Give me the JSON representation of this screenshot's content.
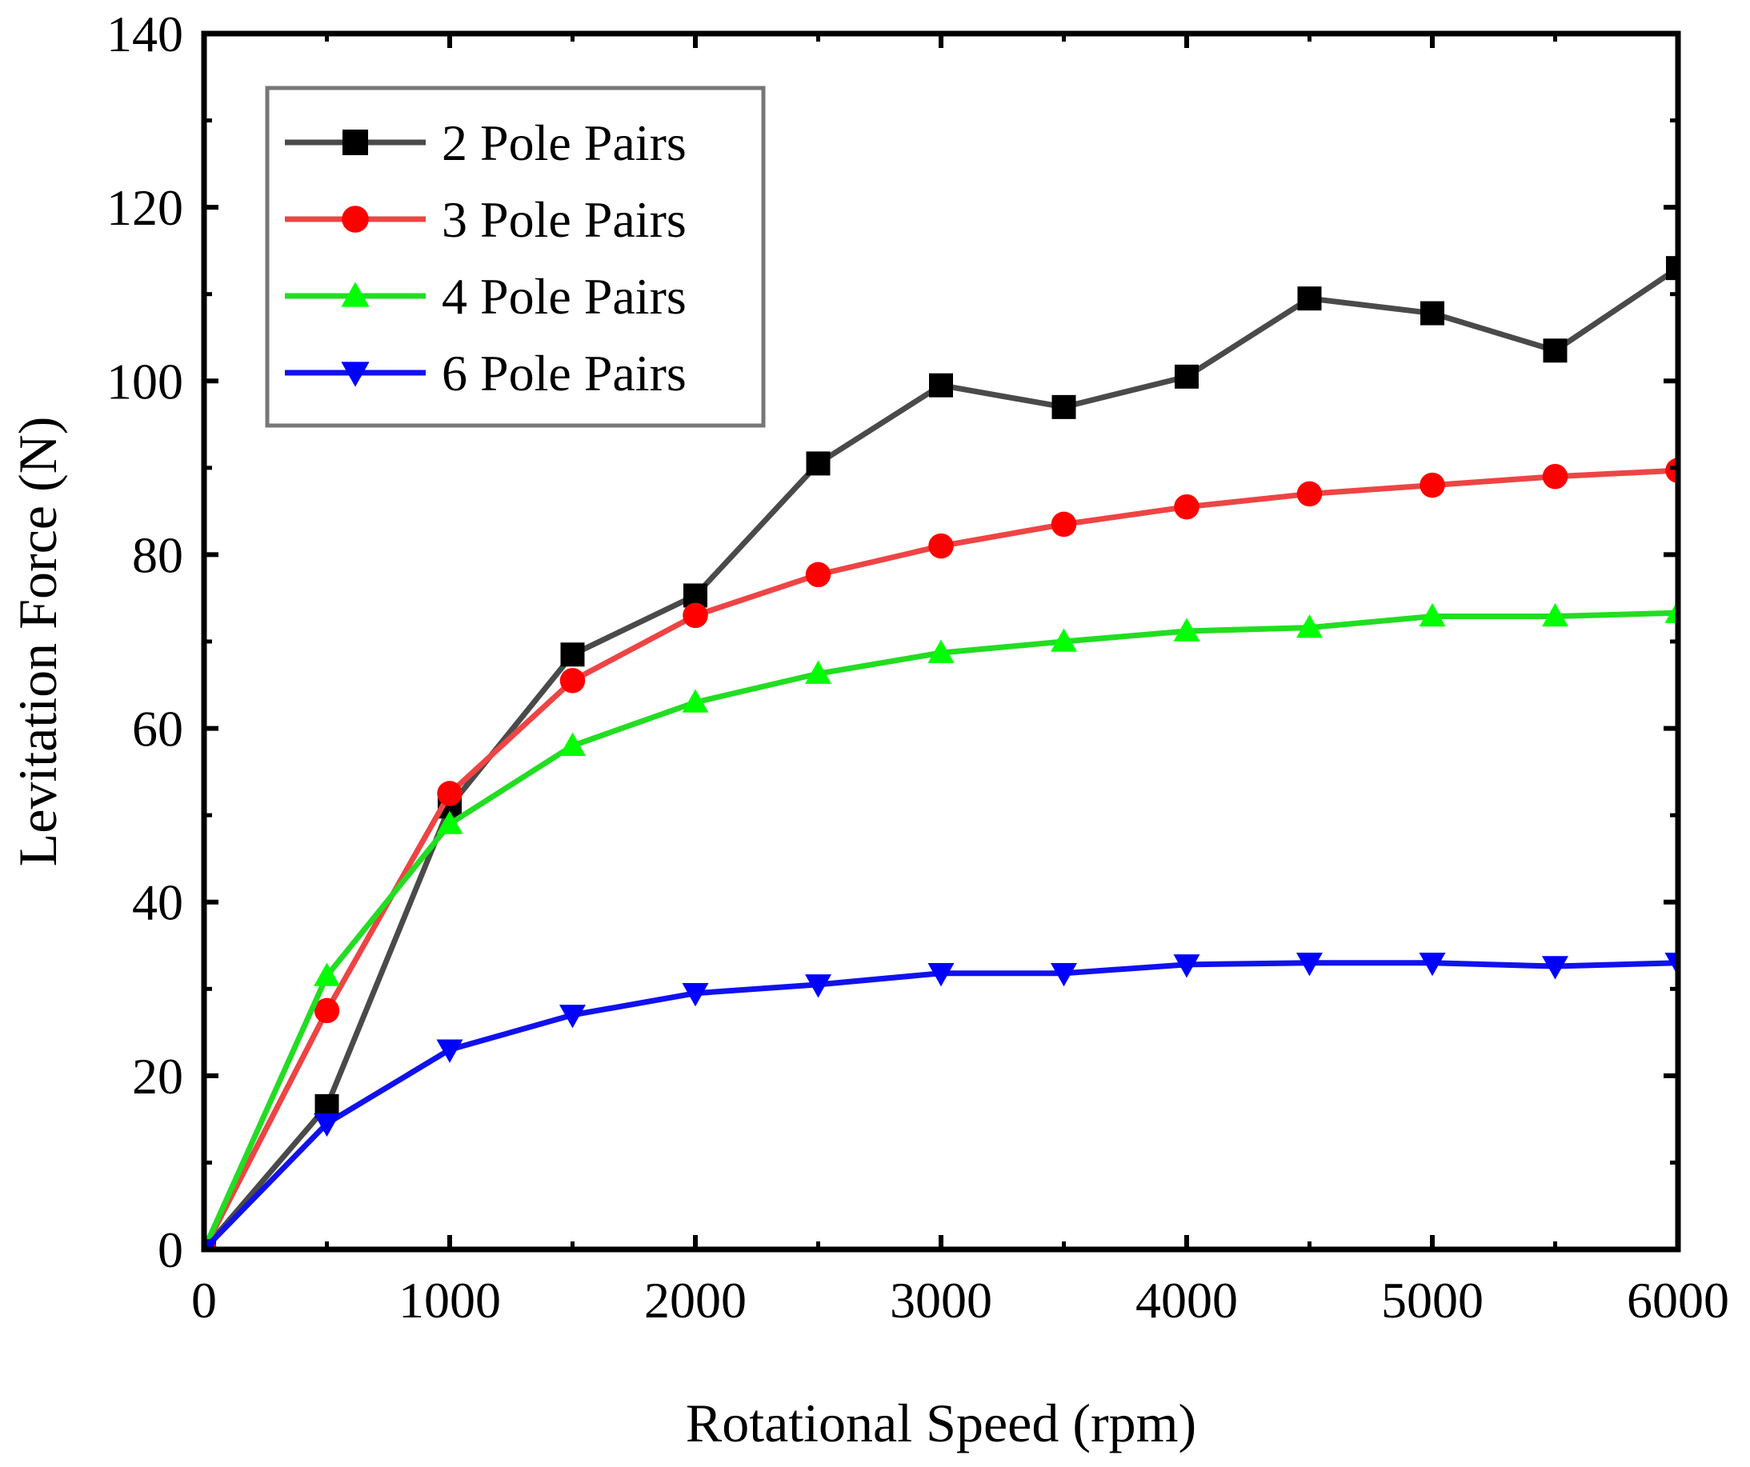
{
  "chart_data": {
    "type": "line",
    "title": "",
    "xlabel": "Rotational Speed (rpm)",
    "ylabel": "Levitation Force (N)",
    "xlim": [
      0,
      6000
    ],
    "ylim": [
      0,
      140
    ],
    "xticks": [
      0,
      1000,
      2000,
      3000,
      4000,
      5000,
      6000
    ],
    "yticks": [
      0,
      20,
      40,
      60,
      80,
      100,
      120,
      140
    ],
    "xtick_labels": [
      "0",
      "1000",
      "2000",
      "3000",
      "4000",
      "5000",
      "6000"
    ],
    "ytick_labels": [
      "0",
      "20",
      "40",
      "60",
      "80",
      "100",
      "120",
      "140"
    ],
    "grid": false,
    "legend_position": "top-left",
    "x": [
      0,
      500,
      1000,
      1500,
      2000,
      2500,
      3000,
      3500,
      4000,
      4500,
      5000,
      5500,
      6000
    ],
    "series": [
      {
        "name": "2 Pole Pairs",
        "color": "#4a4a4a",
        "marker": "square",
        "marker_color": "#000000",
        "values": [
          0,
          16.5,
          51.0,
          68.5,
          75.3,
          90.5,
          99.5,
          97.0,
          100.5,
          109.5,
          107.8,
          103.5,
          113.0
        ]
      },
      {
        "name": "3 Pole Pairs",
        "color": "#ee4444",
        "marker": "circle",
        "marker_color": "#ff0000",
        "values": [
          0,
          27.5,
          52.5,
          65.5,
          73.0,
          77.7,
          81.0,
          83.5,
          85.5,
          87.0,
          88.0,
          89.0,
          89.7
        ]
      },
      {
        "name": "4 Pole Pairs",
        "color": "#22dd22",
        "marker": "triangle-up",
        "marker_color": "#00ff00",
        "values": [
          0,
          31.5,
          49.0,
          58.0,
          63.0,
          66.3,
          68.7,
          70.0,
          71.2,
          71.6,
          72.9,
          72.9,
          73.3
        ]
      },
      {
        "name": "6 Pole Pairs",
        "color": "#1111ee",
        "marker": "triangle-down",
        "marker_color": "#0000ff",
        "values": [
          0,
          14.5,
          23.0,
          27.0,
          29.5,
          30.5,
          31.8,
          31.8,
          32.8,
          33.0,
          33.0,
          32.6,
          33.0
        ]
      }
    ]
  }
}
